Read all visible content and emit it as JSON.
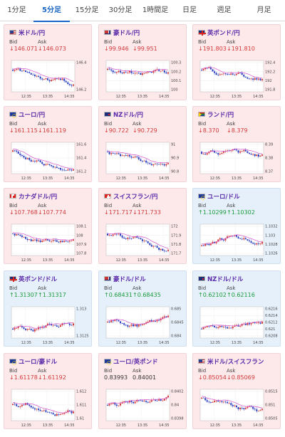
{
  "tabs": [
    {
      "label": "1分足",
      "active": false
    },
    {
      "label": "5分足",
      "active": true
    },
    {
      "label": "15分足",
      "active": false
    },
    {
      "label": "30分足",
      "active": false
    },
    {
      "label": "1時間足",
      "active": false
    },
    {
      "label": "日足",
      "active": false
    },
    {
      "label": "週足",
      "active": false
    },
    {
      "label": "月足",
      "active": false
    }
  ],
  "labels": {
    "bid": "Bid",
    "ask": "Ask"
  },
  "x_tick_labels": [
    "12:35",
    "13:35",
    "14:35"
  ],
  "colors": {
    "pink_card": "#fde8ea",
    "blue_card": "#e6f0fb",
    "down": "#d23a3a",
    "up": "#1a9a3a",
    "pair_name": "#5a2aa8",
    "candle_up": "#d23a3a",
    "candle_down": "#2a3fbf",
    "ma_line": "#d24fc9",
    "active_tab": "#1a66c4"
  },
  "cards": [
    {
      "name": "米ドル/円",
      "flag": "us",
      "theme": "pink",
      "bid": "146.071",
      "ask": "146.073",
      "bid_dir": "down",
      "ask_dir": "down",
      "y_ticks": [
        "146.4",
        "146.2"
      ],
      "trend": "down"
    },
    {
      "name": "豪ドル/円",
      "flag": "au",
      "theme": "pink",
      "bid": "99.946",
      "ask": "99.951",
      "bid_dir": "down",
      "ask_dir": "down",
      "y_ticks": [
        "100.3",
        "100.2",
        "100.1",
        "100"
      ],
      "trend": "down"
    },
    {
      "name": "英ポンド/円",
      "flag": "gb",
      "theme": "pink",
      "bid": "191.803",
      "ask": "191.810",
      "bid_dir": "down",
      "ask_dir": "down",
      "y_ticks": [
        "192.4",
        "192.2",
        "192",
        "191.8"
      ],
      "trend": "down"
    },
    {
      "name": "ユーロ/円",
      "flag": "eu",
      "theme": "pink",
      "bid": "161.115",
      "ask": "161.119",
      "bid_dir": "down",
      "ask_dir": "down",
      "y_ticks": [
        "161.6",
        "161.4",
        "161.2"
      ],
      "trend": "down"
    },
    {
      "name": "NZドル/円",
      "flag": "nz",
      "theme": "pink",
      "bid": "90.722",
      "ask": "90.729",
      "bid_dir": "down",
      "ask_dir": "down",
      "y_ticks": [
        "91",
        "90.9",
        "90.8"
      ],
      "trend": "down"
    },
    {
      "name": "ランド/円",
      "flag": "za",
      "theme": "pink",
      "bid": "8.370",
      "ask": "8.379",
      "bid_dir": "down",
      "ask_dir": "down",
      "y_ticks": [
        "8.39",
        "8.38",
        "8.37"
      ],
      "trend": "down"
    },
    {
      "name": "カナダドル/円",
      "flag": "ca",
      "theme": "pink",
      "bid": "107.768",
      "ask": "107.774",
      "bid_dir": "down",
      "ask_dir": "down",
      "y_ticks": [
        "108.1",
        "108",
        "107.9",
        "107.8"
      ],
      "trend": "down"
    },
    {
      "name": "スイスフラン/円",
      "flag": "ch",
      "theme": "pink",
      "bid": "171.717",
      "ask": "171.733",
      "bid_dir": "down",
      "ask_dir": "down",
      "y_ticks": [
        "172",
        "171.9",
        "171.8",
        "171.7"
      ],
      "trend": "down"
    },
    {
      "name": "ユーロ/ドル",
      "flag": "eu",
      "theme": "blue",
      "bid": "1.10299",
      "ask": "1.10302",
      "bid_dir": "up",
      "ask_dir": "up",
      "y_ticks": [
        "1.1032",
        "1.103",
        "1.1028",
        "1.1026"
      ],
      "trend": "up"
    },
    {
      "name": "英ポンド/ドル",
      "flag": "gb",
      "theme": "blue",
      "bid": "1.31307",
      "ask": "1.31317",
      "bid_dir": "up",
      "ask_dir": "up",
      "y_ticks": [
        "1.313",
        "1.3125"
      ],
      "trend": "up"
    },
    {
      "name": "豪ドル/ドル",
      "flag": "au",
      "theme": "blue",
      "bid": "0.68431",
      "ask": "0.68435",
      "bid_dir": "up",
      "ask_dir": "up",
      "y_ticks": [
        "0.685",
        "0.6845",
        "0.684"
      ],
      "trend": "flat"
    },
    {
      "name": "NZドル/ドル",
      "flag": "nz",
      "theme": "blue",
      "bid": "0.62102",
      "ask": "0.62116",
      "bid_dir": "up",
      "ask_dir": "up",
      "y_ticks": [
        "0.6216",
        "0.6214",
        "0.6212",
        "0.621",
        "0.6208"
      ],
      "trend": "up"
    },
    {
      "name": "ユーロ/豪ドル",
      "flag": "eu",
      "theme": "pink",
      "bid": "1.61178",
      "ask": "1.61192",
      "bid_dir": "down",
      "ask_dir": "down",
      "y_ticks": [
        "1.612",
        "1.611",
        "1.61"
      ],
      "trend": "flat"
    },
    {
      "name": "ユーロ/英ポンド",
      "flag": "eu",
      "theme": "pink",
      "bid": "0.83993",
      "ask": "0.84001",
      "bid_dir": "flat",
      "ask_dir": "flat",
      "y_ticks": [
        "0.8402",
        "0.84",
        "0.8398"
      ],
      "trend": "flat"
    },
    {
      "name": "米ドル/スイスフラン",
      "flag": "us",
      "theme": "pink",
      "bid": "0.85054",
      "ask": "0.85069",
      "bid_dir": "down",
      "ask_dir": "down",
      "y_ticks": [
        "0.8515",
        "0.851",
        "0.8505"
      ],
      "trend": "down"
    }
  ]
}
